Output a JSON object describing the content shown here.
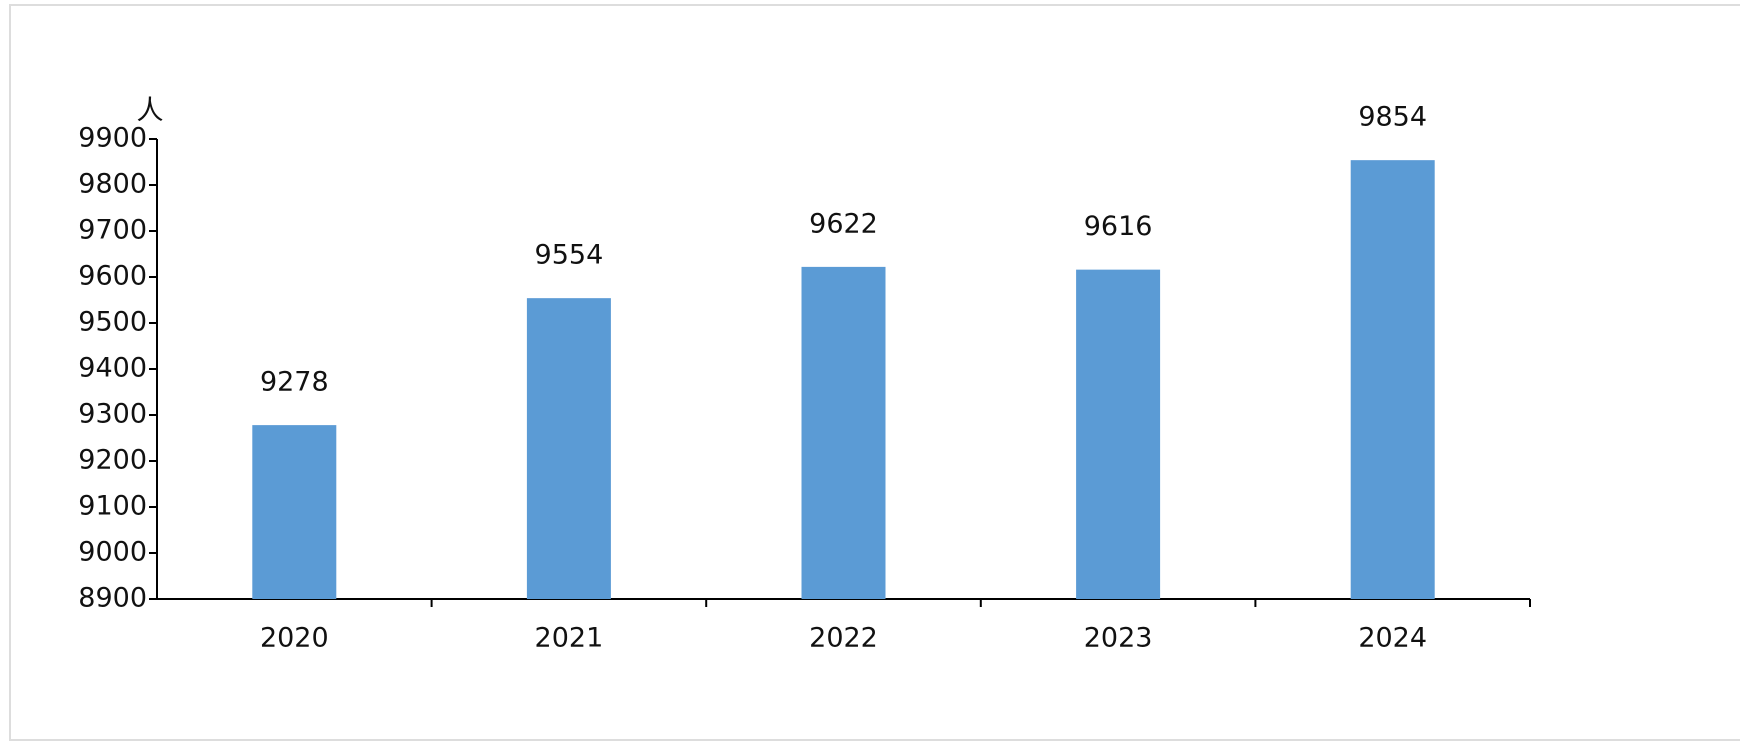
{
  "chart_data": {
    "type": "bar",
    "y_label": "人",
    "categories": [
      "2020",
      "2021",
      "2022",
      "2023",
      "2024"
    ],
    "values": [
      9278,
      9554,
      9622,
      9616,
      9854
    ],
    "color": "#5b9bd5",
    "ylim": [
      8900,
      9900
    ],
    "yticks": [
      8900,
      9000,
      9100,
      9200,
      9300,
      9400,
      9500,
      9600,
      9700,
      9800,
      9900
    ],
    "grid": false
  }
}
